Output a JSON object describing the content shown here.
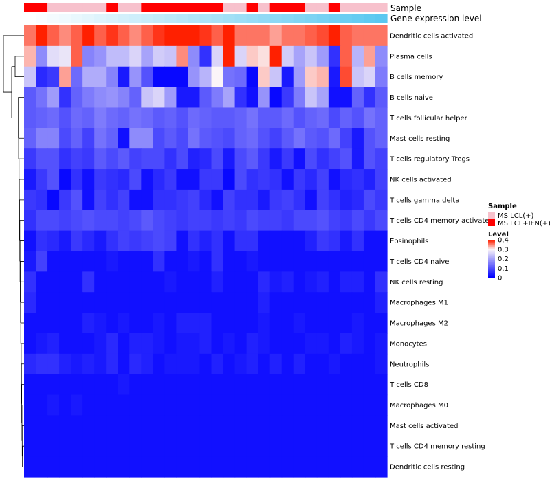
{
  "chart_data": {
    "type": "heatmap",
    "title": "",
    "rows": [
      "Dendritic cells activated",
      "Plasma cells",
      "B cells memory",
      "B cells naive",
      "T cells follicular helper",
      "Mast cells resting",
      "T cells regulatory  Tregs",
      "NK cells activated",
      "T cells gamma delta",
      "T cells CD4 memory activated",
      "Eosinophils",
      "T cells CD4 naive",
      "NK cells resting",
      "Macrophages M1",
      "Macrophages M2",
      "Monocytes",
      "Neutrophils",
      "T cells CD8",
      "Macrophages M0",
      "Mast cells activated",
      "T cells CD4 memory resting",
      "Dendritic cells resting"
    ],
    "n_columns": 31,
    "annotation_tracks": [
      {
        "name": "Sample",
        "values": [
          "IFN",
          "IFN",
          "LCL",
          "LCL",
          "LCL",
          "LCL",
          "LCL",
          "IFN",
          "LCL",
          "LCL",
          "IFN",
          "IFN",
          "IFN",
          "IFN",
          "IFN",
          "IFN",
          "IFN",
          "LCL",
          "LCL",
          "IFN",
          "LCL",
          "IFN",
          "IFN",
          "IFN",
          "LCL",
          "LCL",
          "IFN",
          "LCL",
          "LCL",
          "LCL",
          "LCL"
        ]
      },
      {
        "name": "Gene expression level",
        "values": [
          0.0,
          0.033,
          0.067,
          0.1,
          0.133,
          0.167,
          0.2,
          0.233,
          0.267,
          0.3,
          0.333,
          0.367,
          0.4,
          0.433,
          0.467,
          0.5,
          0.533,
          0.567,
          0.6,
          0.633,
          0.667,
          0.7,
          0.733,
          0.767,
          0.8,
          0.833,
          0.867,
          0.9,
          0.933,
          0.967,
          1.0
        ]
      }
    ],
    "values": [
      [
        0.36,
        0.4,
        0.37,
        0.35,
        0.37,
        0.4,
        0.37,
        0.39,
        0.37,
        0.35,
        0.37,
        0.39,
        0.4,
        0.4,
        0.4,
        0.39,
        0.37,
        0.4,
        0.36,
        0.36,
        0.36,
        0.34,
        0.36,
        0.36,
        0.37,
        0.38,
        0.4,
        0.37,
        0.36,
        0.36,
        0.36
      ],
      [
        0.33,
        0.17,
        0.27,
        0.28,
        0.37,
        0.16,
        0.18,
        0.23,
        0.23,
        0.26,
        0.2,
        0.25,
        0.24,
        0.35,
        0.17,
        0.06,
        0.26,
        0.4,
        0.26,
        0.32,
        0.31,
        0.4,
        0.25,
        0.2,
        0.24,
        0.19,
        0.06,
        0.37,
        0.22,
        0.34,
        0.17
      ],
      [
        0.24,
        0.05,
        0.07,
        0.34,
        0.13,
        0.21,
        0.21,
        0.16,
        0.03,
        0.18,
        0.1,
        0.01,
        0.01,
        0.01,
        0.18,
        0.22,
        0.3,
        0.14,
        0.13,
        0.01,
        0.32,
        0.24,
        0.03,
        0.19,
        0.32,
        0.33,
        0.03,
        0.38,
        0.24,
        0.26,
        0.15
      ],
      [
        0.11,
        0.14,
        0.19,
        0.06,
        0.12,
        0.15,
        0.17,
        0.18,
        0.16,
        0.12,
        0.24,
        0.26,
        0.19,
        0.03,
        0.03,
        0.11,
        0.15,
        0.2,
        0.06,
        0.02,
        0.18,
        0.01,
        0.07,
        0.15,
        0.24,
        0.2,
        0.02,
        0.02,
        0.12,
        0.06,
        0.11
      ],
      [
        0.11,
        0.12,
        0.13,
        0.1,
        0.13,
        0.12,
        0.15,
        0.13,
        0.12,
        0.14,
        0.13,
        0.11,
        0.12,
        0.1,
        0.13,
        0.12,
        0.11,
        0.11,
        0.12,
        0.14,
        0.11,
        0.11,
        0.13,
        0.1,
        0.12,
        0.13,
        0.09,
        0.12,
        0.1,
        0.14,
        0.12
      ],
      [
        0.12,
        0.16,
        0.16,
        0.09,
        0.12,
        0.08,
        0.14,
        0.12,
        0.02,
        0.17,
        0.17,
        0.09,
        0.11,
        0.09,
        0.14,
        0.11,
        0.1,
        0.09,
        0.12,
        0.13,
        0.1,
        0.08,
        0.11,
        0.14,
        0.11,
        0.1,
        0.13,
        0.08,
        0.03,
        0.1,
        0.12
      ],
      [
        0.07,
        0.1,
        0.1,
        0.06,
        0.08,
        0.07,
        0.11,
        0.09,
        0.11,
        0.08,
        0.09,
        0.09,
        0.06,
        0.09,
        0.04,
        0.05,
        0.09,
        0.03,
        0.09,
        0.11,
        0.07,
        0.03,
        0.07,
        0.02,
        0.09,
        0.06,
        0.08,
        0.1,
        0.03,
        0.1,
        0.08
      ],
      [
        0.03,
        0.07,
        0.1,
        0.01,
        0.06,
        0.02,
        0.07,
        0.06,
        0.05,
        0.09,
        0.02,
        0.05,
        0.07,
        0.02,
        0.02,
        0.07,
        0.07,
        0.01,
        0.09,
        0.06,
        0.07,
        0.06,
        0.02,
        0.07,
        0.05,
        0.08,
        0.02,
        0.05,
        0.06,
        0.04,
        0.08
      ],
      [
        0.07,
        0.06,
        0.01,
        0.07,
        0.1,
        0.02,
        0.08,
        0.06,
        0.08,
        0.02,
        0.02,
        0.06,
        0.06,
        0.07,
        0.08,
        0.05,
        0.02,
        0.08,
        0.06,
        0.06,
        0.03,
        0.07,
        0.08,
        0.06,
        0.02,
        0.08,
        0.06,
        0.04,
        0.05,
        0.09,
        0.07
      ],
      [
        0.06,
        0.09,
        0.09,
        0.08,
        0.09,
        0.1,
        0.09,
        0.09,
        0.08,
        0.09,
        0.11,
        0.09,
        0.08,
        0.07,
        0.08,
        0.08,
        0.07,
        0.08,
        0.07,
        0.09,
        0.08,
        0.08,
        0.07,
        0.09,
        0.09,
        0.1,
        0.08,
        0.07,
        0.09,
        0.07,
        0.09
      ],
      [
        0.02,
        0.06,
        0.05,
        0.03,
        0.07,
        0.05,
        0.03,
        0.06,
        0.08,
        0.07,
        0.08,
        0.09,
        0.08,
        0.02,
        0.06,
        0.04,
        0.06,
        0.02,
        0.06,
        0.06,
        0.02,
        0.02,
        0.02,
        0.02,
        0.04,
        0.07,
        0.06,
        0.03,
        0.06,
        0.02,
        0.02
      ],
      [
        0.03,
        0.08,
        0.02,
        0.02,
        0.02,
        0.02,
        0.02,
        0.03,
        0.02,
        0.02,
        0.02,
        0.06,
        0.02,
        0.02,
        0.03,
        0.02,
        0.06,
        0.02,
        0.02,
        0.03,
        0.02,
        0.02,
        0.02,
        0.02,
        0.02,
        0.02,
        0.02,
        0.02,
        0.02,
        0.02,
        0.02
      ],
      [
        0.06,
        0.02,
        0.02,
        0.02,
        0.02,
        0.06,
        0.02,
        0.02,
        0.02,
        0.02,
        0.02,
        0.02,
        0.03,
        0.02,
        0.02,
        0.02,
        0.04,
        0.02,
        0.02,
        0.02,
        0.05,
        0.03,
        0.04,
        0.02,
        0.03,
        0.04,
        0.02,
        0.04,
        0.04,
        0.02,
        0.06
      ],
      [
        0.05,
        0.02,
        0.02,
        0.02,
        0.02,
        0.02,
        0.02,
        0.02,
        0.02,
        0.02,
        0.02,
        0.02,
        0.02,
        0.02,
        0.02,
        0.02,
        0.02,
        0.02,
        0.02,
        0.02,
        0.04,
        0.02,
        0.02,
        0.02,
        0.02,
        0.02,
        0.02,
        0.02,
        0.02,
        0.02,
        0.04
      ],
      [
        0.02,
        0.02,
        0.02,
        0.02,
        0.02,
        0.04,
        0.03,
        0.02,
        0.03,
        0.02,
        0.02,
        0.03,
        0.02,
        0.04,
        0.04,
        0.04,
        0.02,
        0.02,
        0.02,
        0.02,
        0.03,
        0.02,
        0.02,
        0.03,
        0.02,
        0.02,
        0.02,
        0.02,
        0.03,
        0.02,
        0.02
      ],
      [
        0.02,
        0.03,
        0.04,
        0.02,
        0.02,
        0.02,
        0.03,
        0.05,
        0.02,
        0.04,
        0.04,
        0.03,
        0.02,
        0.03,
        0.03,
        0.04,
        0.02,
        0.03,
        0.02,
        0.04,
        0.03,
        0.02,
        0.02,
        0.02,
        0.03,
        0.03,
        0.02,
        0.04,
        0.03,
        0.02,
        0.03
      ],
      [
        0.05,
        0.06,
        0.06,
        0.04,
        0.03,
        0.04,
        0.03,
        0.05,
        0.02,
        0.05,
        0.04,
        0.02,
        0.03,
        0.03,
        0.03,
        0.02,
        0.04,
        0.02,
        0.03,
        0.04,
        0.02,
        0.04,
        0.02,
        0.04,
        0.02,
        0.02,
        0.03,
        0.02,
        0.02,
        0.02,
        0.03
      ],
      [
        0.02,
        0.02,
        0.02,
        0.02,
        0.02,
        0.02,
        0.02,
        0.02,
        0.03,
        0.02,
        0.02,
        0.02,
        0.02,
        0.02,
        0.02,
        0.02,
        0.02,
        0.02,
        0.02,
        0.02,
        0.02,
        0.02,
        0.02,
        0.02,
        0.02,
        0.02,
        0.02,
        0.02,
        0.02,
        0.02,
        0.02
      ],
      [
        0.02,
        0.02,
        0.03,
        0.02,
        0.03,
        0.02,
        0.02,
        0.02,
        0.02,
        0.02,
        0.02,
        0.02,
        0.02,
        0.02,
        0.02,
        0.02,
        0.02,
        0.02,
        0.02,
        0.02,
        0.02,
        0.02,
        0.02,
        0.02,
        0.02,
        0.02,
        0.02,
        0.02,
        0.02,
        0.02,
        0.02
      ],
      [
        0.02,
        0.02,
        0.02,
        0.02,
        0.02,
        0.02,
        0.02,
        0.02,
        0.02,
        0.02,
        0.02,
        0.02,
        0.02,
        0.02,
        0.02,
        0.02,
        0.02,
        0.02,
        0.02,
        0.02,
        0.02,
        0.02,
        0.02,
        0.02,
        0.02,
        0.02,
        0.02,
        0.02,
        0.02,
        0.02,
        0.02
      ],
      [
        0.02,
        0.02,
        0.02,
        0.02,
        0.02,
        0.02,
        0.02,
        0.02,
        0.02,
        0.02,
        0.02,
        0.02,
        0.02,
        0.02,
        0.02,
        0.02,
        0.02,
        0.02,
        0.02,
        0.02,
        0.02,
        0.02,
        0.02,
        0.02,
        0.02,
        0.02,
        0.02,
        0.02,
        0.02,
        0.02,
        0.02
      ],
      [
        0.02,
        0.02,
        0.02,
        0.02,
        0.02,
        0.02,
        0.02,
        0.02,
        0.02,
        0.02,
        0.02,
        0.02,
        0.02,
        0.02,
        0.02,
        0.02,
        0.02,
        0.02,
        0.02,
        0.02,
        0.02,
        0.02,
        0.02,
        0.02,
        0.02,
        0.02,
        0.02,
        0.02,
        0.02,
        0.02,
        0.02
      ]
    ],
    "color_scale": {
      "min": 0,
      "mid": 0.3,
      "max": 0.4,
      "low_color": "#0000ff",
      "mid_color": "#fbf5f8",
      "high_color": "#ff2000"
    },
    "legend": {
      "placement": "right",
      "sample_title": "Sample",
      "sample_items": [
        {
          "key": "LCL",
          "label": "MS LCL(+)",
          "color": "#f7c1cc"
        },
        {
          "key": "IFN",
          "label": "MS LCL+IFN(+)",
          "color": "#ff0000"
        }
      ],
      "level_title": "Level",
      "level_ticks": [
        {
          "value": 0.4,
          "label": "0.4"
        },
        {
          "value": 0.3,
          "label": "0.3"
        },
        {
          "value": 0.2,
          "label": "0.2"
        },
        {
          "value": 0.1,
          "label": "0.1"
        },
        {
          "value": 0,
          "label": "0"
        }
      ]
    },
    "expression_colors": {
      "low": "#ffffff",
      "high": "#5bc8f0"
    }
  }
}
